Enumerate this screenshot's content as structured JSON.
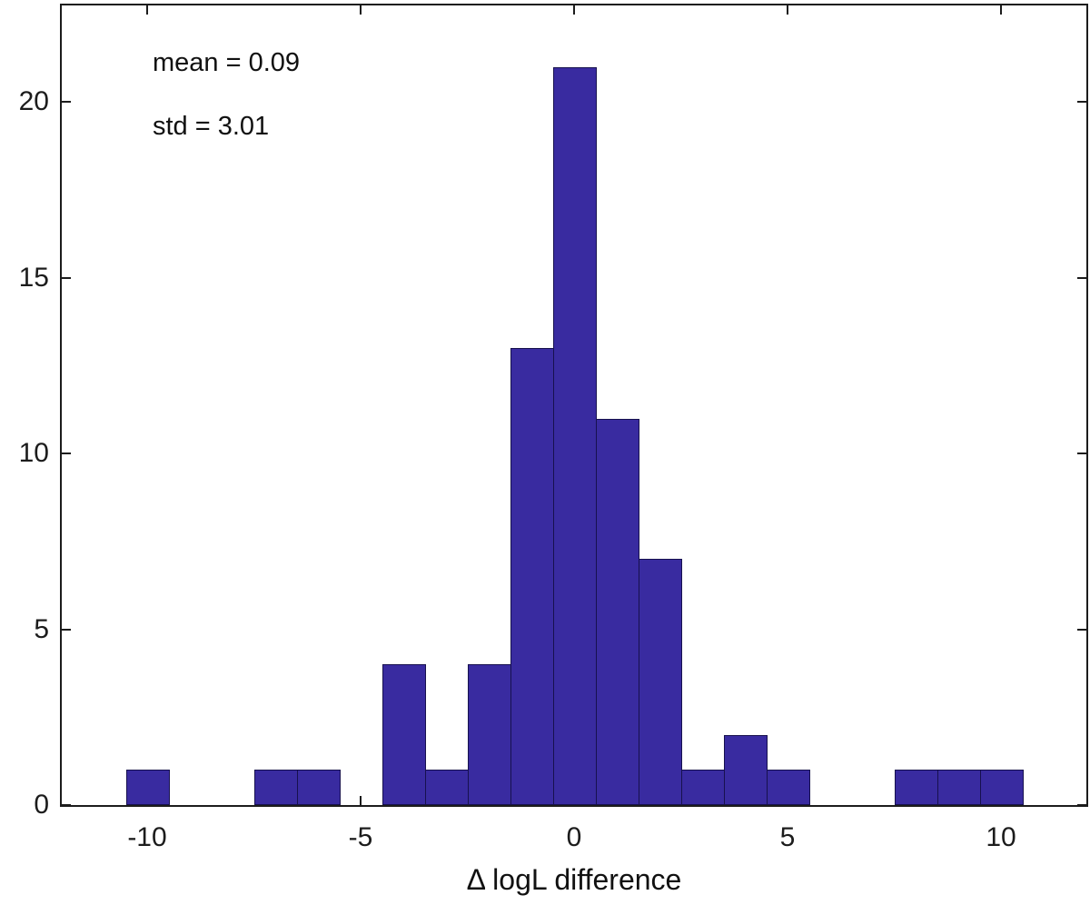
{
  "figure": {
    "background": "#ffffff"
  },
  "annotations": {
    "mean": "mean = 0.09",
    "std": "std = 3.01"
  },
  "chart_data": {
    "type": "bar",
    "subtype": "histogram",
    "title": "",
    "xlabel": "Δ logL difference",
    "ylabel": "",
    "xlim": [
      -12,
      12
    ],
    "ylim": [
      0,
      22.75
    ],
    "grid": "off",
    "legend": "none",
    "bin_width": 1,
    "x_ticks": [
      {
        "value": -10,
        "label": "-10"
      },
      {
        "value": -5,
        "label": "-5"
      },
      {
        "value": 0,
        "label": "0"
      },
      {
        "value": 5,
        "label": "5"
      },
      {
        "value": 10,
        "label": "10"
      }
    ],
    "y_ticks": [
      {
        "value": 0,
        "label": "0"
      },
      {
        "value": 5,
        "label": "5"
      },
      {
        "value": 10,
        "label": "10"
      },
      {
        "value": 15,
        "label": "15"
      },
      {
        "value": 20,
        "label": "20"
      }
    ],
    "bins": [
      {
        "center": -10,
        "count": 1
      },
      {
        "center": -7,
        "count": 1
      },
      {
        "center": -6,
        "count": 1
      },
      {
        "center": -4,
        "count": 4
      },
      {
        "center": -3,
        "count": 1
      },
      {
        "center": -2,
        "count": 4
      },
      {
        "center": -1,
        "count": 13
      },
      {
        "center": 0,
        "count": 21
      },
      {
        "center": 1,
        "count": 11
      },
      {
        "center": 2,
        "count": 7
      },
      {
        "center": 3,
        "count": 1
      },
      {
        "center": 4,
        "count": 2
      },
      {
        "center": 5,
        "count": 1
      },
      {
        "center": 8,
        "count": 1
      },
      {
        "center": 9,
        "count": 1
      },
      {
        "center": 10,
        "count": 1
      }
    ],
    "annotation_texts": [
      "mean = 0.09",
      "std = 3.01"
    ],
    "colors": {
      "bar_fill": "#392ba0",
      "bar_edge": "#17114e",
      "axis": "#1c1c1c",
      "text": "#111111"
    }
  }
}
